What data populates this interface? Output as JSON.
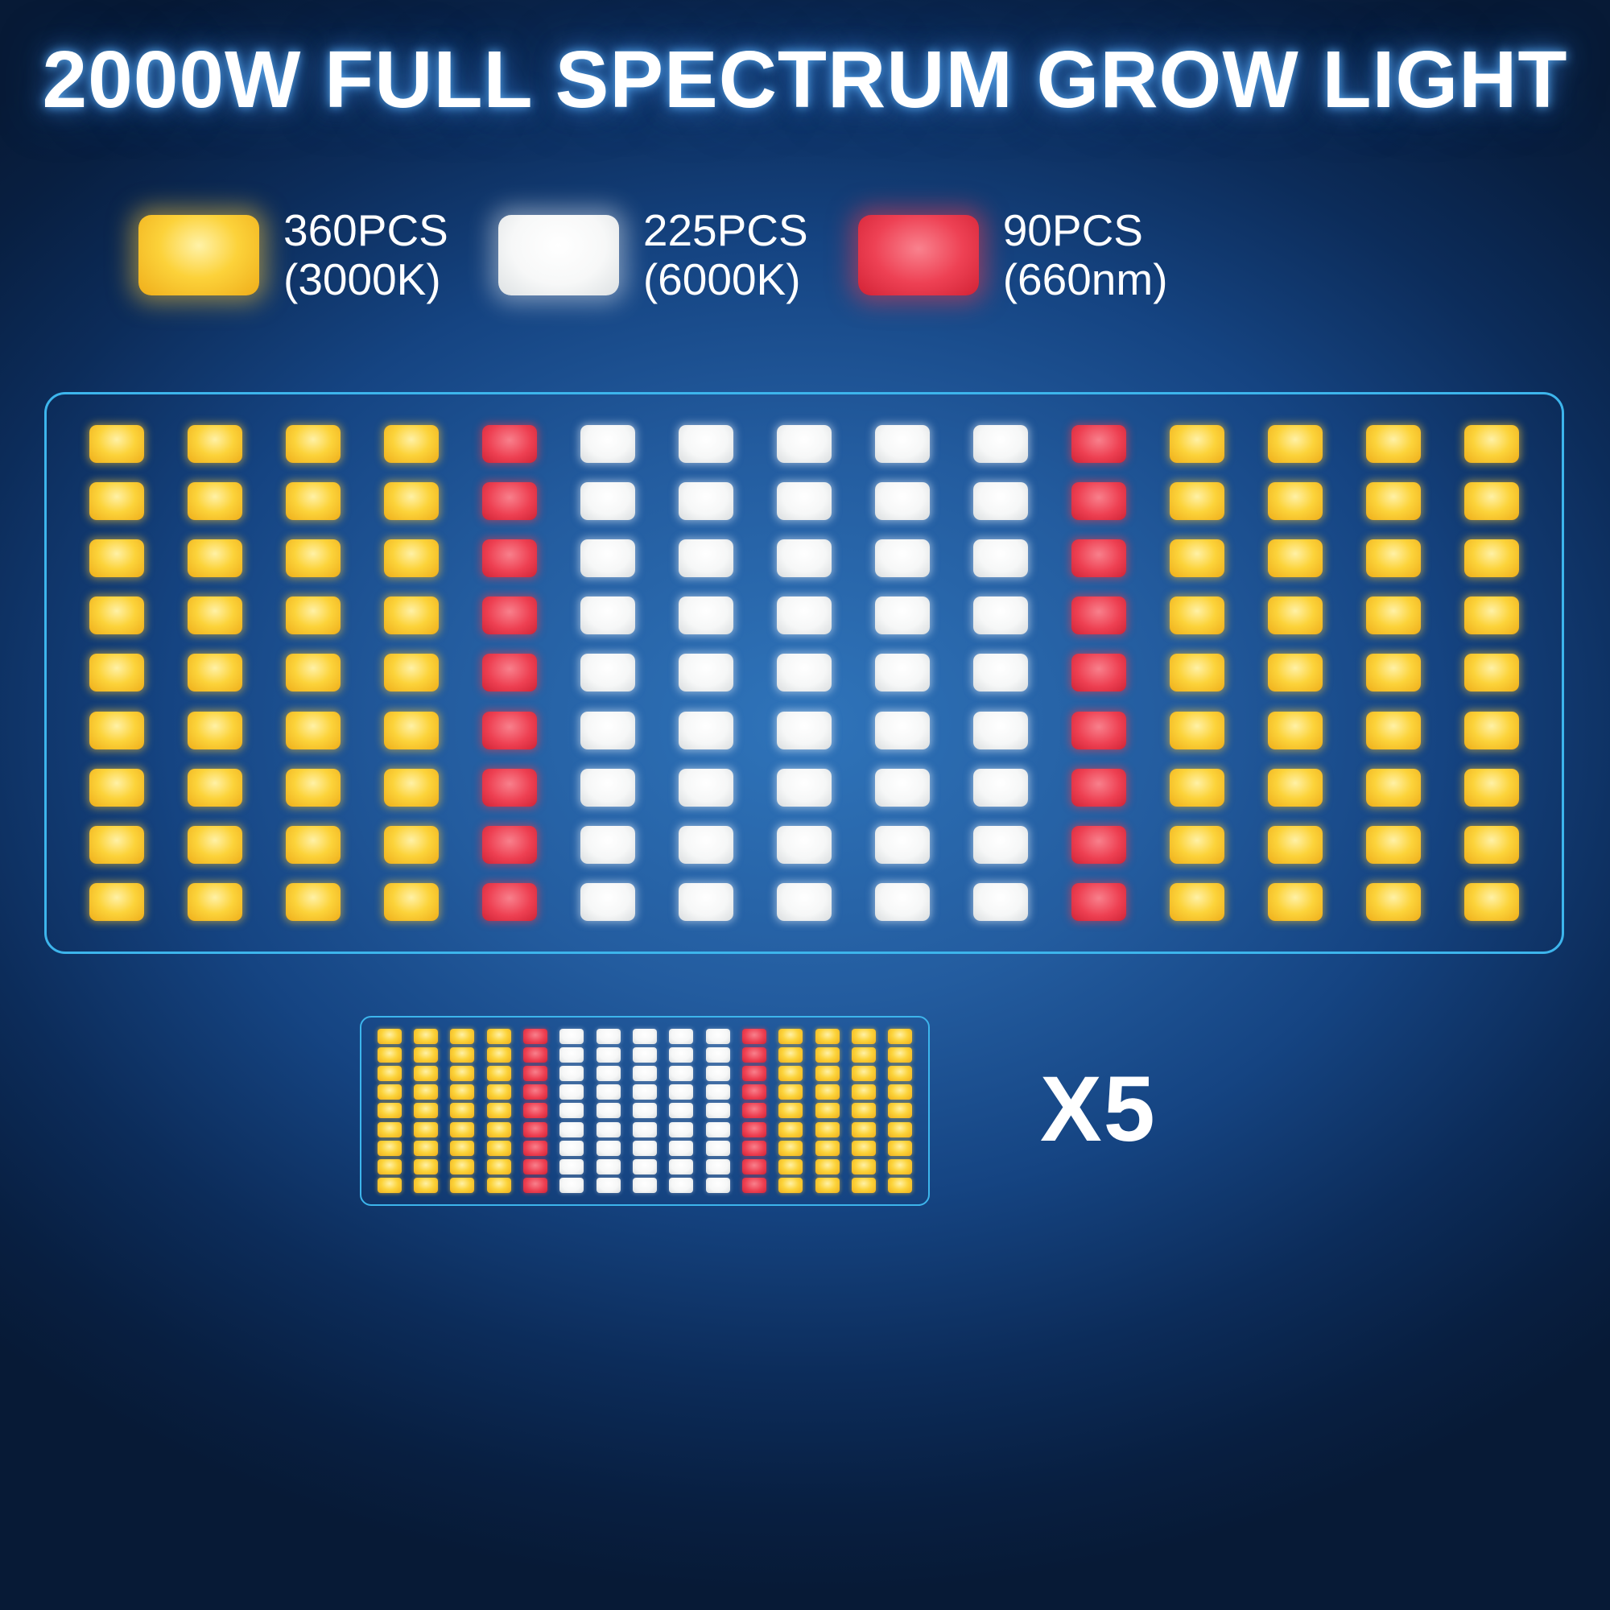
{
  "title": "2000W FULL SPECTRUM GROW LIGHT",
  "legend": {
    "items": [
      {
        "type": "warm-white",
        "color": "#f9c823",
        "count": "360PCS",
        "spec": "(3000K)"
      },
      {
        "type": "cool-white",
        "color": "#ffffff",
        "count": "225PCS",
        "spec": "(6000K)"
      },
      {
        "type": "deep-red",
        "color": "#e8394a",
        "count": "90PCS",
        "spec": "(660nm)"
      }
    ]
  },
  "board": {
    "rows": 9,
    "columns": 15,
    "column_pattern": [
      "Y",
      "Y",
      "Y",
      "Y",
      "R",
      "W",
      "W",
      "W",
      "W",
      "W",
      "R",
      "Y",
      "Y",
      "Y",
      "Y"
    ]
  },
  "multiplier_label": "X5",
  "colors": {
    "panel_border": "#3db5ec",
    "background_center": "#2f74ba",
    "background_edge": "#071a36",
    "title_glow": "#3c82d2"
  }
}
